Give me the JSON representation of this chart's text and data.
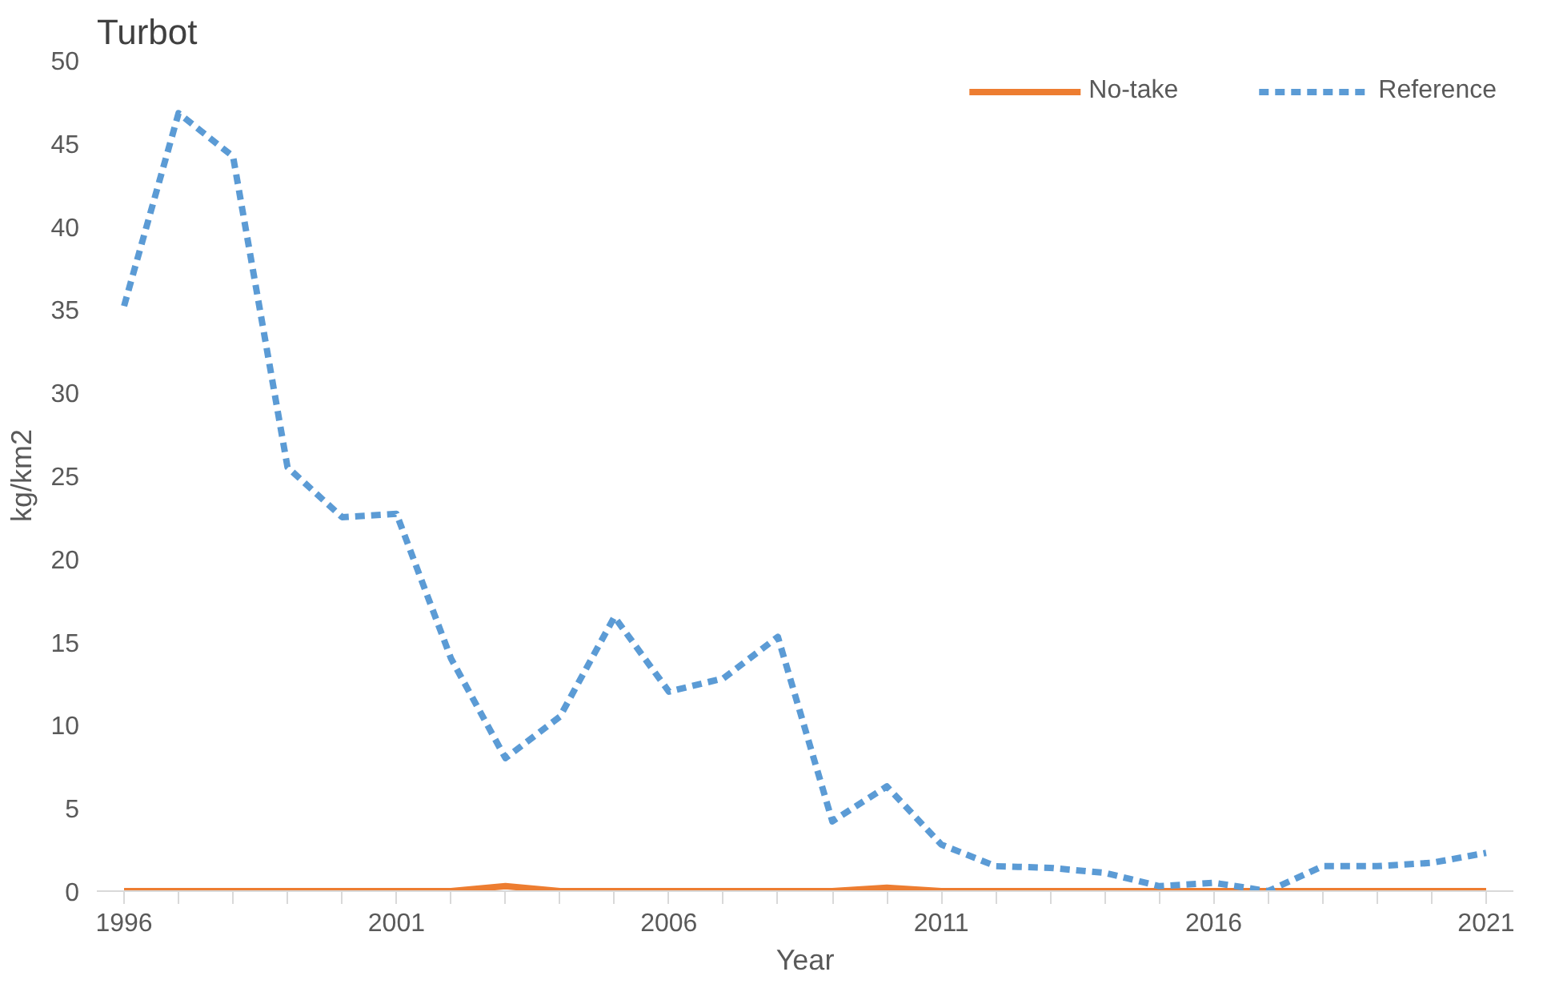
{
  "chart_data": {
    "type": "line",
    "title": "Turbot",
    "xlabel": "Year",
    "ylabel": "kg/km2",
    "x": [
      1996,
      1997,
      1998,
      1999,
      2000,
      2001,
      2002,
      2003,
      2004,
      2005,
      2006,
      2007,
      2008,
      2009,
      2010,
      2011,
      2012,
      2013,
      2014,
      2015,
      2016,
      2017,
      2018,
      2019,
      2020,
      2021
    ],
    "series": [
      {
        "name": "No-take",
        "color": "#ed7d31",
        "line_style": "solid",
        "values": [
          0,
          0,
          0,
          0,
          0,
          0,
          0,
          0.3,
          0,
          0,
          0,
          0,
          0,
          0,
          0.2,
          0,
          0,
          0,
          0,
          0,
          0,
          0,
          0,
          0,
          0,
          0
        ]
      },
      {
        "name": "Reference",
        "color": "#5b9bd5",
        "line_style": "dashed",
        "values": [
          35.2,
          46.8,
          44.2,
          25.5,
          22.5,
          22.7,
          14,
          8,
          10.5,
          16.5,
          12,
          12.8,
          15.3,
          4.2,
          6.3,
          2.8,
          1.5,
          1.4,
          1.1,
          0.3,
          0.5,
          0,
          1.5,
          1.5,
          1.7,
          2.3
        ]
      }
    ],
    "xlim": [
      1995.5,
      2021.5
    ],
    "ylim": [
      0,
      50
    ],
    "xticks": [
      1996,
      {
        "value": 1997,
        "label": null
      },
      {
        "value": 1998,
        "label": null
      },
      {
        "value": 1999,
        "label": null
      },
      {
        "value": 2000,
        "label": null
      },
      2001,
      {
        "value": 2002,
        "label": null
      },
      {
        "value": 2003,
        "label": null
      },
      {
        "value": 2004,
        "label": null
      },
      {
        "value": 2005,
        "label": null
      },
      2006,
      {
        "value": 2007,
        "label": null
      },
      {
        "value": 2008,
        "label": null
      },
      {
        "value": 2009,
        "label": null
      },
      {
        "value": 2010,
        "label": null
      },
      2011,
      {
        "value": 2012,
        "label": null
      },
      {
        "value": 2013,
        "label": null
      },
      {
        "value": 2014,
        "label": null
      },
      {
        "value": 2015,
        "label": null
      },
      2016,
      {
        "value": 2017,
        "label": null
      },
      {
        "value": 2018,
        "label": null
      },
      {
        "value": 2019,
        "label": null
      },
      {
        "value": 2020,
        "label": null
      },
      2021
    ],
    "yticks": [
      0,
      5,
      10,
      15,
      20,
      25,
      30,
      35,
      40,
      45,
      50
    ],
    "grid": false,
    "legend": "top right"
  }
}
